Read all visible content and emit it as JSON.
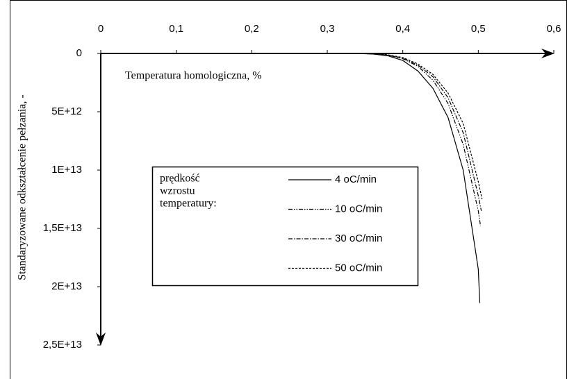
{
  "chart_data": {
    "type": "line",
    "x_label": "Temperatura homologiczna, %",
    "y_label": "Standaryzowane odkształcenie pełzania, -",
    "xlim": [
      0,
      0.6
    ],
    "xticks": [
      0,
      {
        "value": 0.1,
        "label": "0,1"
      },
      {
        "value": 0.2,
        "label": "0,2"
      },
      {
        "value": 0.3,
        "label": "0,3"
      },
      {
        "value": 0.4,
        "label": "0,4"
      },
      {
        "value": 0.5,
        "label": "0,5"
      },
      {
        "value": 0.6,
        "label": "0,6"
      }
    ],
    "ylim": [
      0,
      25000000000000
    ],
    "y_inverted": true,
    "yticks": [
      0,
      {
        "value": 5000000000000,
        "label": "5E+12"
      },
      {
        "value": 10000000000000,
        "label": "1E+13"
      },
      {
        "value": 15000000000000,
        "label": "1,5E+13"
      },
      {
        "value": 20000000000000,
        "label": "2E+13"
      },
      {
        "value": 25000000000000,
        "label": "2,5E+13"
      }
    ],
    "legend_title": [
      "prędkość",
      "wzrostu",
      "temperatury:"
    ],
    "series": [
      {
        "name": "4 oC/min",
        "color": "#000000",
        "dash": "none",
        "x": [
          0.275,
          0.3,
          0.32,
          0.34,
          0.36,
          0.38,
          0.4,
          0.42,
          0.44,
          0.46,
          0.48,
          0.5,
          0.502
        ],
        "values": [
          0,
          0,
          0,
          0,
          50000000000,
          200000000000,
          600000000000,
          1500000000000,
          3000000000000,
          5500000000000,
          10000000000000,
          18500000000000,
          21400000000000
        ]
      },
      {
        "name": "10 oC/min",
        "color": "#000000",
        "dash": "6 2 1.5 2 1.5 2",
        "x": [
          0.275,
          0.3,
          0.32,
          0.34,
          0.36,
          0.38,
          0.4,
          0.42,
          0.44,
          0.46,
          0.48,
          0.5,
          0.503
        ],
        "values": [
          0,
          0,
          0,
          0,
          40000000000,
          150000000000,
          450000000000,
          1100000000000,
          2300000000000,
          4300000000000,
          7800000000000,
          13500000000000,
          14800000000000
        ]
      },
      {
        "name": "30 oC/min",
        "color": "#000000",
        "dash": "6 2 1.5 2",
        "x": [
          0.275,
          0.3,
          0.32,
          0.34,
          0.36,
          0.38,
          0.4,
          0.42,
          0.44,
          0.46,
          0.48,
          0.5,
          0.504
        ],
        "values": [
          0,
          0,
          0,
          0,
          35000000000,
          130000000000,
          400000000000,
          1000000000000,
          2000000000000,
          3800000000000,
          6800000000000,
          12200000000000,
          13500000000000
        ]
      },
      {
        "name": "50 oC/min",
        "color": "#000000",
        "dash": "3 2",
        "x": [
          0.275,
          0.3,
          0.32,
          0.34,
          0.36,
          0.38,
          0.4,
          0.42,
          0.44,
          0.46,
          0.48,
          0.5,
          0.505
        ],
        "values": [
          0,
          0,
          0,
          0,
          30000000000,
          110000000000,
          350000000000,
          900000000000,
          1800000000000,
          3400000000000,
          6000000000000,
          11000000000000,
          12500000000000
        ]
      }
    ]
  }
}
